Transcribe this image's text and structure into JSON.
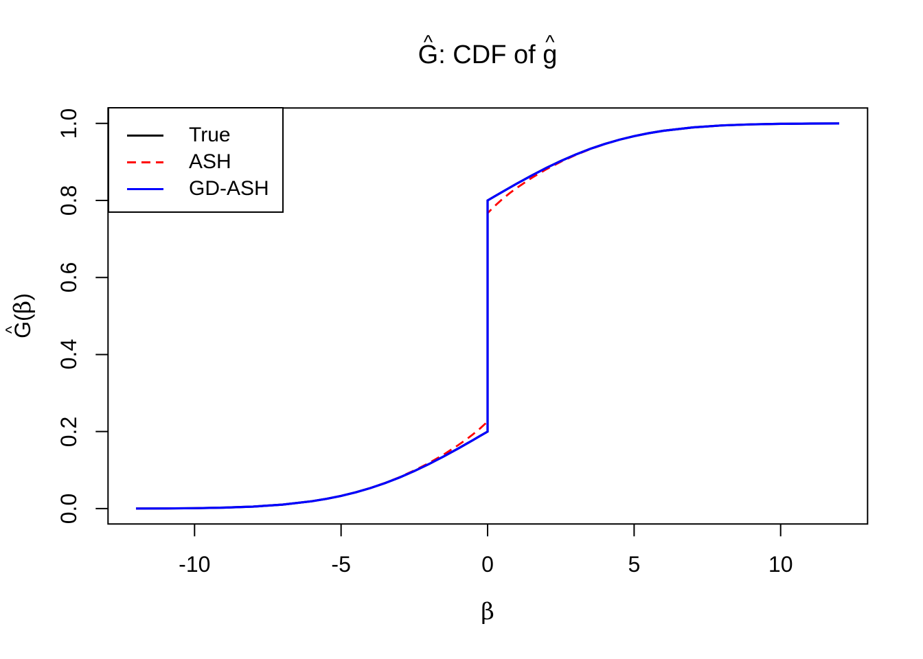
{
  "figure": {
    "background": "#FFFFFF",
    "axis_color": "#000000"
  },
  "title_parts": {
    "G": "G",
    "hat": "^",
    "mid": ": CDF of ",
    "g": "g"
  },
  "ylabel_parts": {
    "hat": "^",
    "G": "G",
    "open": "(",
    "beta": "β",
    "close": ")"
  },
  "chart_data": {
    "type": "line",
    "title": "Ĝ: CDF of ĝ",
    "xlabel": "β",
    "ylabel": "Ĝ(β)",
    "x_range": [
      -12,
      12
    ],
    "y_range": [
      0,
      1
    ],
    "grid": false,
    "legend_position": "topleft",
    "xticks": [
      -10,
      -5,
      0,
      5,
      10
    ],
    "xtick_labels": [
      "-10",
      "-5",
      "0",
      "5",
      "10"
    ],
    "yticks": [
      0,
      0.2,
      0.4,
      0.6,
      0.8,
      1.0
    ],
    "ytick_labels": [
      "0.0",
      "0.2",
      "0.4",
      "0.6",
      "0.8",
      "1.0"
    ],
    "jump_at_zero": {
      "true_cdf": [
        0.2,
        0.8
      ],
      "ash": [
        0.226,
        0.767
      ]
    },
    "series": [
      {
        "name": "True",
        "color": "#000000",
        "style": "solid",
        "points": [
          [
            -12,
            0.0002
          ],
          [
            -11,
            0.0004
          ],
          [
            -10,
            0.0011
          ],
          [
            -9,
            0.0025
          ],
          [
            -8,
            0.0052
          ],
          [
            -7,
            0.0104
          ],
          [
            -6,
            0.0191
          ],
          [
            -5.5,
            0.0253
          ],
          [
            -5,
            0.033
          ],
          [
            -4.5,
            0.0422
          ],
          [
            -4,
            0.0533
          ],
          [
            -3.5,
            0.0662
          ],
          [
            -3,
            0.0809
          ],
          [
            -2.5,
            0.0975
          ],
          [
            -2,
            0.1157
          ],
          [
            -1.5,
            0.1354
          ],
          [
            -1,
            0.1562
          ],
          [
            -0.75,
            0.167
          ],
          [
            -0.5,
            0.1779
          ],
          [
            -0.25,
            0.1889
          ],
          [
            0,
            0.2
          ],
          [
            0,
            0.8
          ],
          [
            0.25,
            0.8111
          ],
          [
            0.5,
            0.8221
          ],
          [
            0.75,
            0.833
          ],
          [
            1,
            0.8438
          ],
          [
            1.5,
            0.8646
          ],
          [
            2,
            0.8843
          ],
          [
            2.5,
            0.9025
          ],
          [
            3,
            0.9191
          ],
          [
            3.5,
            0.9338
          ],
          [
            4,
            0.9467
          ],
          [
            4.5,
            0.9578
          ],
          [
            5,
            0.967
          ],
          [
            5.5,
            0.9747
          ],
          [
            6,
            0.9809
          ],
          [
            7,
            0.9896
          ],
          [
            8,
            0.9948
          ],
          [
            9,
            0.9975
          ],
          [
            10,
            0.9989
          ],
          [
            11,
            0.9996
          ],
          [
            12,
            0.9998
          ]
        ]
      },
      {
        "name": "ASH",
        "color": "#FF0000",
        "style": "dashed",
        "points": [
          [
            -12,
            0.0002
          ],
          [
            -11,
            0.0004
          ],
          [
            -10,
            0.0011
          ],
          [
            -9,
            0.0025
          ],
          [
            -8,
            0.0052
          ],
          [
            -7,
            0.0104
          ],
          [
            -6,
            0.0191
          ],
          [
            -5.5,
            0.0253
          ],
          [
            -5,
            0.0331
          ],
          [
            -4.5,
            0.0424
          ],
          [
            -4,
            0.0536
          ],
          [
            -3.5,
            0.0667
          ],
          [
            -3,
            0.0818
          ],
          [
            -2.5,
            0.0991
          ],
          [
            -2,
            0.1185
          ],
          [
            -1.5,
            0.1403
          ],
          [
            -1,
            0.1648
          ],
          [
            -0.75,
            0.1783
          ],
          [
            -0.5,
            0.1928
          ],
          [
            -0.25,
            0.2086
          ],
          [
            0,
            0.226
          ],
          [
            0,
            0.767
          ],
          [
            0.25,
            0.7861
          ],
          [
            0.5,
            0.8032
          ],
          [
            0.75,
            0.8187
          ],
          [
            1,
            0.8329
          ],
          [
            1.5,
            0.8584
          ],
          [
            2,
            0.8807
          ],
          [
            2.5,
            0.9005
          ],
          [
            3,
            0.9179
          ],
          [
            3.5,
            0.9331
          ],
          [
            4,
            0.9463
          ],
          [
            4.5,
            0.9578
          ],
          [
            5,
            0.967
          ],
          [
            5.5,
            0.9747
          ],
          [
            6,
            0.9809
          ],
          [
            7,
            0.9896
          ],
          [
            8,
            0.9948
          ],
          [
            9,
            0.9975
          ],
          [
            10,
            0.9989
          ],
          [
            11,
            0.9996
          ],
          [
            12,
            0.9998
          ]
        ]
      },
      {
        "name": "GD-ASH",
        "color": "#0000FF",
        "style": "solid",
        "points": [
          [
            -12,
            0.0002
          ],
          [
            -11,
            0.0004
          ],
          [
            -10,
            0.0011
          ],
          [
            -9,
            0.0025
          ],
          [
            -8,
            0.0052
          ],
          [
            -7,
            0.0104
          ],
          [
            -6,
            0.0191
          ],
          [
            -5.5,
            0.0253
          ],
          [
            -5,
            0.033
          ],
          [
            -4.5,
            0.0422
          ],
          [
            -4,
            0.0533
          ],
          [
            -3.5,
            0.0662
          ],
          [
            -3,
            0.0809
          ],
          [
            -2.5,
            0.0975
          ],
          [
            -2,
            0.1157
          ],
          [
            -1.5,
            0.1354
          ],
          [
            -1,
            0.1562
          ],
          [
            -0.75,
            0.167
          ],
          [
            -0.5,
            0.1779
          ],
          [
            -0.25,
            0.1889
          ],
          [
            0,
            0.2
          ],
          [
            0,
            0.8
          ],
          [
            0.25,
            0.8111
          ],
          [
            0.5,
            0.8221
          ],
          [
            0.75,
            0.833
          ],
          [
            1,
            0.8438
          ],
          [
            1.5,
            0.8646
          ],
          [
            2,
            0.8843
          ],
          [
            2.5,
            0.9025
          ],
          [
            3,
            0.9191
          ],
          [
            3.5,
            0.9338
          ],
          [
            4,
            0.9467
          ],
          [
            4.5,
            0.9578
          ],
          [
            5,
            0.967
          ],
          [
            5.5,
            0.9747
          ],
          [
            6,
            0.9809
          ],
          [
            7,
            0.9896
          ],
          [
            8,
            0.9948
          ],
          [
            9,
            0.9975
          ],
          [
            10,
            0.9989
          ],
          [
            11,
            0.9996
          ],
          [
            12,
            0.9998
          ]
        ]
      }
    ]
  }
}
